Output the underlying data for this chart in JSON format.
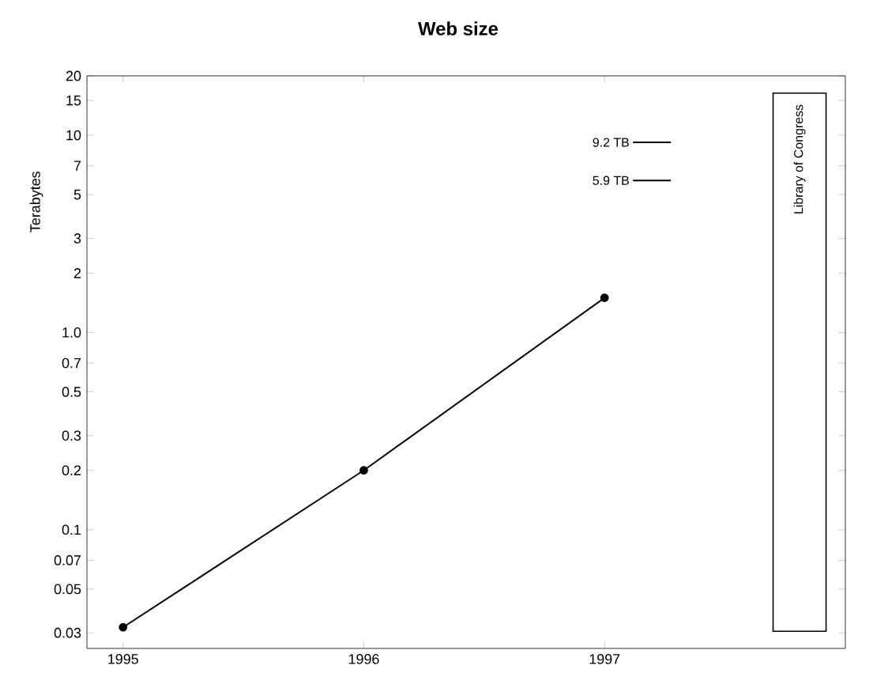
{
  "chart_data": {
    "type": "line",
    "title": "Web size",
    "ylabel": "Terabytes",
    "x": [
      1995,
      1996,
      1997
    ],
    "series": [
      {
        "color": "#000000",
        "values": [
          0.032,
          0.2,
          1.5
        ]
      }
    ],
    "log": "y",
    "marker": "circle",
    "line_style": "solid",
    "grid": false,
    "xlim": [
      1994.85,
      1998
    ],
    "xticks": [
      1995,
      1996,
      1997
    ],
    "ylim": [
      0.025,
      20
    ],
    "yticks": [
      0.03,
      0.05,
      0.07,
      0.1,
      0.2,
      0.3,
      0.5,
      0.7,
      {
        "value": 1,
        "label": "1.0"
      },
      2,
      3,
      5,
      7,
      10,
      15,
      20
    ],
    "ref_lines": [
      {
        "axis": "y",
        "value": 9.2,
        "label": "9.2 TB",
        "color": "#000000"
      },
      {
        "axis": "y",
        "value": 5.9,
        "label": "5.9 TB",
        "color": "#000000"
      }
    ],
    "bands": [
      {
        "axis": "x",
        "from": 1997.7,
        "to": 1997.92,
        "label": "Library of Congress",
        "color": "#ffffff"
      }
    ]
  }
}
